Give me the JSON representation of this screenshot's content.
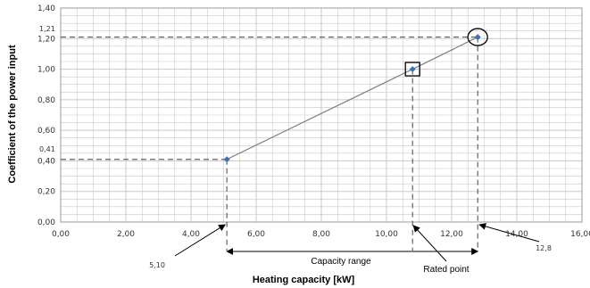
{
  "chart_data": {
    "type": "scatter",
    "title": "",
    "xlabel": "Heating capacity [kW]",
    "ylabel": "Coefficient of the power input",
    "xlim": [
      0,
      16
    ],
    "ylim": [
      0,
      1.4
    ],
    "x_ticks": [
      "0,00",
      "2,00",
      "4,00",
      "6,00",
      "8,00",
      "10,00",
      "12,00",
      "14,00",
      "16,00"
    ],
    "y_ticks": [
      "0,00",
      "0,20",
      "0,40",
      "0,60",
      "0,80",
      "1,00",
      "1,20",
      "1,40"
    ],
    "grid": true,
    "series": [
      {
        "x": [
          5.1,
          10.8,
          12.8
        ],
        "y": [
          0.41,
          1.0,
          1.21
        ]
      }
    ],
    "annotations": {
      "x_min_label": "5,10",
      "x_max_label": "12,8",
      "y_min_label": "0,41",
      "y_max_label": "1,21",
      "capacity_range_label": "Capacity range",
      "rated_point_label": "Rated point"
    },
    "colors": {
      "marker": "#3a70b8",
      "line": "#7f7f7f",
      "grid": "#c8c8c8"
    }
  }
}
